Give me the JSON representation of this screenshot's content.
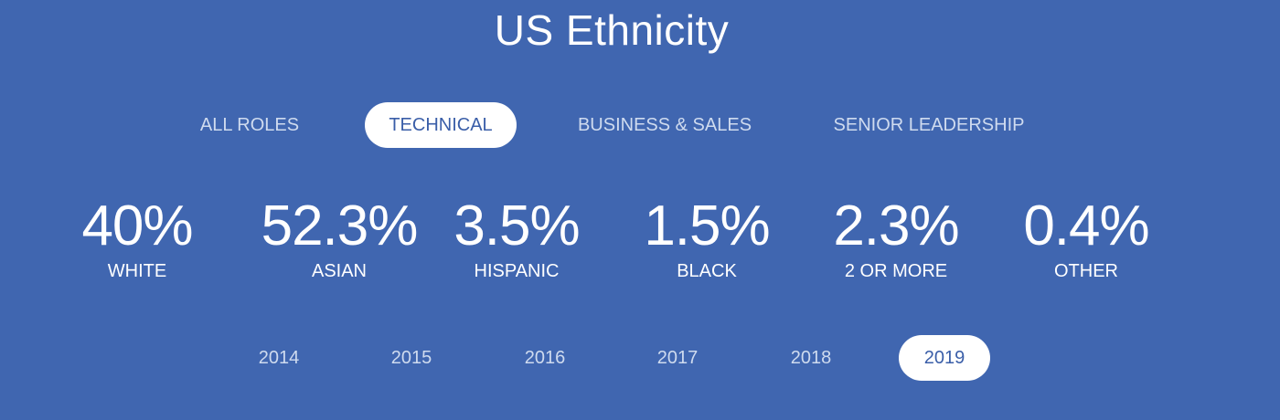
{
  "title": "US Ethnicity",
  "role_tabs": [
    {
      "label": "ALL ROLES"
    },
    {
      "label": "TECHNICAL"
    },
    {
      "label": "BUSINESS & SALES"
    },
    {
      "label": "SENIOR LEADERSHIP"
    }
  ],
  "active_role_tab": "TECHNICAL",
  "stats": [
    {
      "value": "40%",
      "label": "WHITE"
    },
    {
      "value": "52.3%",
      "label": "ASIAN"
    },
    {
      "value": "3.5%",
      "label": "HISPANIC"
    },
    {
      "value": "1.5%",
      "label": "BLACK"
    },
    {
      "value": "2.3%",
      "label": "2 OR MORE"
    },
    {
      "value": "0.4%",
      "label": "OTHER"
    }
  ],
  "years": [
    {
      "label": "2014"
    },
    {
      "label": "2015"
    },
    {
      "label": "2016"
    },
    {
      "label": "2017"
    },
    {
      "label": "2018"
    },
    {
      "label": "2019"
    }
  ],
  "active_year": "2019",
  "colors": {
    "background": "#4066b0",
    "pill_active_bg": "#ffffff",
    "pill_active_text": "#3a5ea8",
    "pill_inactive_text": "#cfdbef"
  }
}
